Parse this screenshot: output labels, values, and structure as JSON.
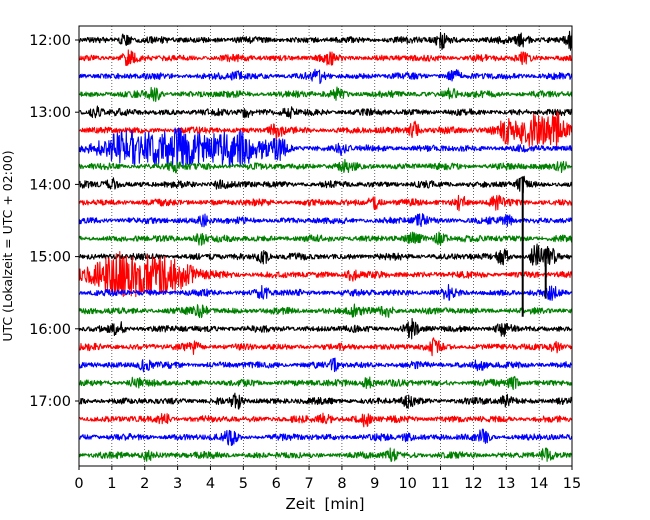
{
  "chart_data": {
    "type": "line",
    "title": "",
    "xlabel": "Zeit  [min]",
    "ylabel": "UTC (Lokalzeit = UTC + 02:00)",
    "xlim": [
      0,
      15
    ],
    "x_ticks": [
      "0",
      "1",
      "2",
      "3",
      "4",
      "5",
      "6",
      "7",
      "8",
      "9",
      "10",
      "11",
      "12",
      "13",
      "14",
      "15"
    ],
    "y_ticks": [
      "12:00",
      "13:00",
      "14:00",
      "15:00",
      "16:00",
      "17:00"
    ],
    "grid": "vertical dotted at each minute",
    "trace_interval_min": 15,
    "color_cycle": [
      "#000000",
      "#ff0000",
      "#0000ff",
      "#008000"
    ],
    "traces": [
      {
        "start": "12:00",
        "color": "#000000",
        "events": [
          {
            "t": 1.4,
            "amp": 5
          },
          {
            "t": 11.0,
            "amp": 8
          },
          {
            "t": 13.5,
            "amp": 6
          },
          {
            "t": 15.0,
            "amp": 10
          }
        ]
      },
      {
        "start": "12:15",
        "color": "#ff0000",
        "events": [
          {
            "t": 1.5,
            "amp": 6
          },
          {
            "t": 7.6,
            "amp": 5
          },
          {
            "t": 13.5,
            "amp": 5
          }
        ]
      },
      {
        "start": "12:30",
        "color": "#0000ff",
        "events": [
          {
            "t": 4.8,
            "amp": 5
          },
          {
            "t": 7.3,
            "amp": 5
          },
          {
            "t": 11.4,
            "amp": 5
          }
        ]
      },
      {
        "start": "12:45",
        "color": "#008000",
        "events": [
          {
            "t": 2.3,
            "amp": 6
          },
          {
            "t": 7.9,
            "amp": 5
          },
          {
            "t": 11.3,
            "amp": 5
          }
        ]
      },
      {
        "start": "13:00",
        "color": "#000000",
        "events": [
          {
            "t": 0.5,
            "amp": 5
          },
          {
            "t": 5.1,
            "amp": 5
          },
          {
            "t": 6.4,
            "amp": 4
          }
        ]
      },
      {
        "start": "13:15",
        "color": "#ff0000",
        "events": [
          {
            "t": 6.0,
            "amp": 8
          },
          {
            "t": 10.2,
            "amp": 8
          },
          {
            "t": 13.0,
            "amp": 9
          },
          {
            "t": 13.9,
            "amp": 14
          },
          {
            "t": 14.6,
            "amp": 10
          }
        ]
      },
      {
        "start": "13:30",
        "color": "#0000ff",
        "events": [
          {
            "t": 1.5,
            "amp": 14
          },
          {
            "t": 3.0,
            "amp": 16
          },
          {
            "t": 4.8,
            "amp": 16
          },
          {
            "t": 6.1,
            "amp": 12
          },
          {
            "t": 8.0,
            "amp": 5
          }
        ]
      },
      {
        "start": "13:45",
        "color": "#008000",
        "events": [
          {
            "t": 2.9,
            "amp": 5
          },
          {
            "t": 8.1,
            "amp": 4
          },
          {
            "t": 14.7,
            "amp": 5
          }
        ]
      },
      {
        "start": "14:00",
        "color": "#000000",
        "events": [
          {
            "t": 1.0,
            "amp": 5
          },
          {
            "t": 4.3,
            "amp": 5
          },
          {
            "t": 13.5,
            "amp": 5
          }
        ]
      },
      {
        "start": "14:15",
        "color": "#ff0000",
        "events": [
          {
            "t": 9.0,
            "amp": 6
          },
          {
            "t": 11.6,
            "amp": 6
          },
          {
            "t": 12.7,
            "amp": 5
          }
        ]
      },
      {
        "start": "14:30",
        "color": "#0000ff",
        "events": [
          {
            "t": 3.8,
            "amp": 5
          },
          {
            "t": 10.4,
            "amp": 5
          },
          {
            "t": 13.0,
            "amp": 5
          }
        ]
      },
      {
        "start": "14:45",
        "color": "#008000",
        "events": [
          {
            "t": 3.7,
            "amp": 5
          },
          {
            "t": 10.2,
            "amp": 5
          },
          {
            "t": 11.0,
            "amp": 6
          }
        ]
      },
      {
        "start": "15:00",
        "color": "#000000",
        "events": [
          {
            "t": 5.6,
            "amp": 7
          },
          {
            "t": 12.9,
            "amp": 7
          },
          {
            "t": 13.9,
            "amp": 10
          },
          {
            "t": 14.3,
            "amp": 9
          }
        ]
      },
      {
        "start": "15:15",
        "color": "#ff0000",
        "events": [
          {
            "t": 1.2,
            "amp": 18
          },
          {
            "t": 2.6,
            "amp": 16
          },
          {
            "t": 8.3,
            "amp": 5
          }
        ]
      },
      {
        "start": "15:30",
        "color": "#0000ff",
        "events": [
          {
            "t": 5.6,
            "amp": 5
          },
          {
            "t": 11.2,
            "amp": 5
          },
          {
            "t": 14.4,
            "amp": 5
          }
        ]
      },
      {
        "start": "15:45",
        "color": "#008000",
        "events": [
          {
            "t": 3.7,
            "amp": 6
          },
          {
            "t": 8.4,
            "amp": 5
          },
          {
            "t": 9.4,
            "amp": 5
          }
        ]
      },
      {
        "start": "16:00",
        "color": "#000000",
        "events": [
          {
            "t": 1.2,
            "amp": 6
          },
          {
            "t": 10.1,
            "amp": 8
          },
          {
            "t": 12.9,
            "amp": 5
          }
        ]
      },
      {
        "start": "16:15",
        "color": "#ff0000",
        "events": [
          {
            "t": 3.5,
            "amp": 5
          },
          {
            "t": 10.8,
            "amp": 6
          },
          {
            "t": 14.5,
            "amp": 5
          }
        ]
      },
      {
        "start": "16:30",
        "color": "#0000ff",
        "events": [
          {
            "t": 2.0,
            "amp": 5
          },
          {
            "t": 7.8,
            "amp": 5
          },
          {
            "t": 12.2,
            "amp": 5
          }
        ]
      },
      {
        "start": "16:45",
        "color": "#008000",
        "events": [
          {
            "t": 1.7,
            "amp": 5
          },
          {
            "t": 8.8,
            "amp": 5
          },
          {
            "t": 13.2,
            "amp": 5
          }
        ]
      },
      {
        "start": "17:00",
        "color": "#000000",
        "events": [
          {
            "t": 4.8,
            "amp": 6
          },
          {
            "t": 10.0,
            "amp": 5
          },
          {
            "t": 13.0,
            "amp": 5
          }
        ]
      },
      {
        "start": "17:15",
        "color": "#ff0000",
        "events": [
          {
            "t": 2.6,
            "amp": 5
          },
          {
            "t": 7.5,
            "amp": 5
          },
          {
            "t": 8.7,
            "amp": 6
          }
        ]
      },
      {
        "start": "17:30",
        "color": "#0000ff",
        "events": [
          {
            "t": 4.6,
            "amp": 6
          },
          {
            "t": 10.0,
            "amp": 5
          },
          {
            "t": 12.3,
            "amp": 5
          }
        ]
      },
      {
        "start": "17:45",
        "color": "#008000",
        "events": [
          {
            "t": 2.1,
            "amp": 5
          },
          {
            "t": 9.5,
            "amp": 5
          },
          {
            "t": 14.2,
            "amp": 5
          }
        ]
      }
    ],
    "spikes": [
      {
        "t": 13.5,
        "from": "14:00",
        "to": "15:30",
        "color": "#000000"
      },
      {
        "t": 14.2,
        "from": "15:00",
        "to": "15:15",
        "color": "#000000"
      }
    ]
  }
}
